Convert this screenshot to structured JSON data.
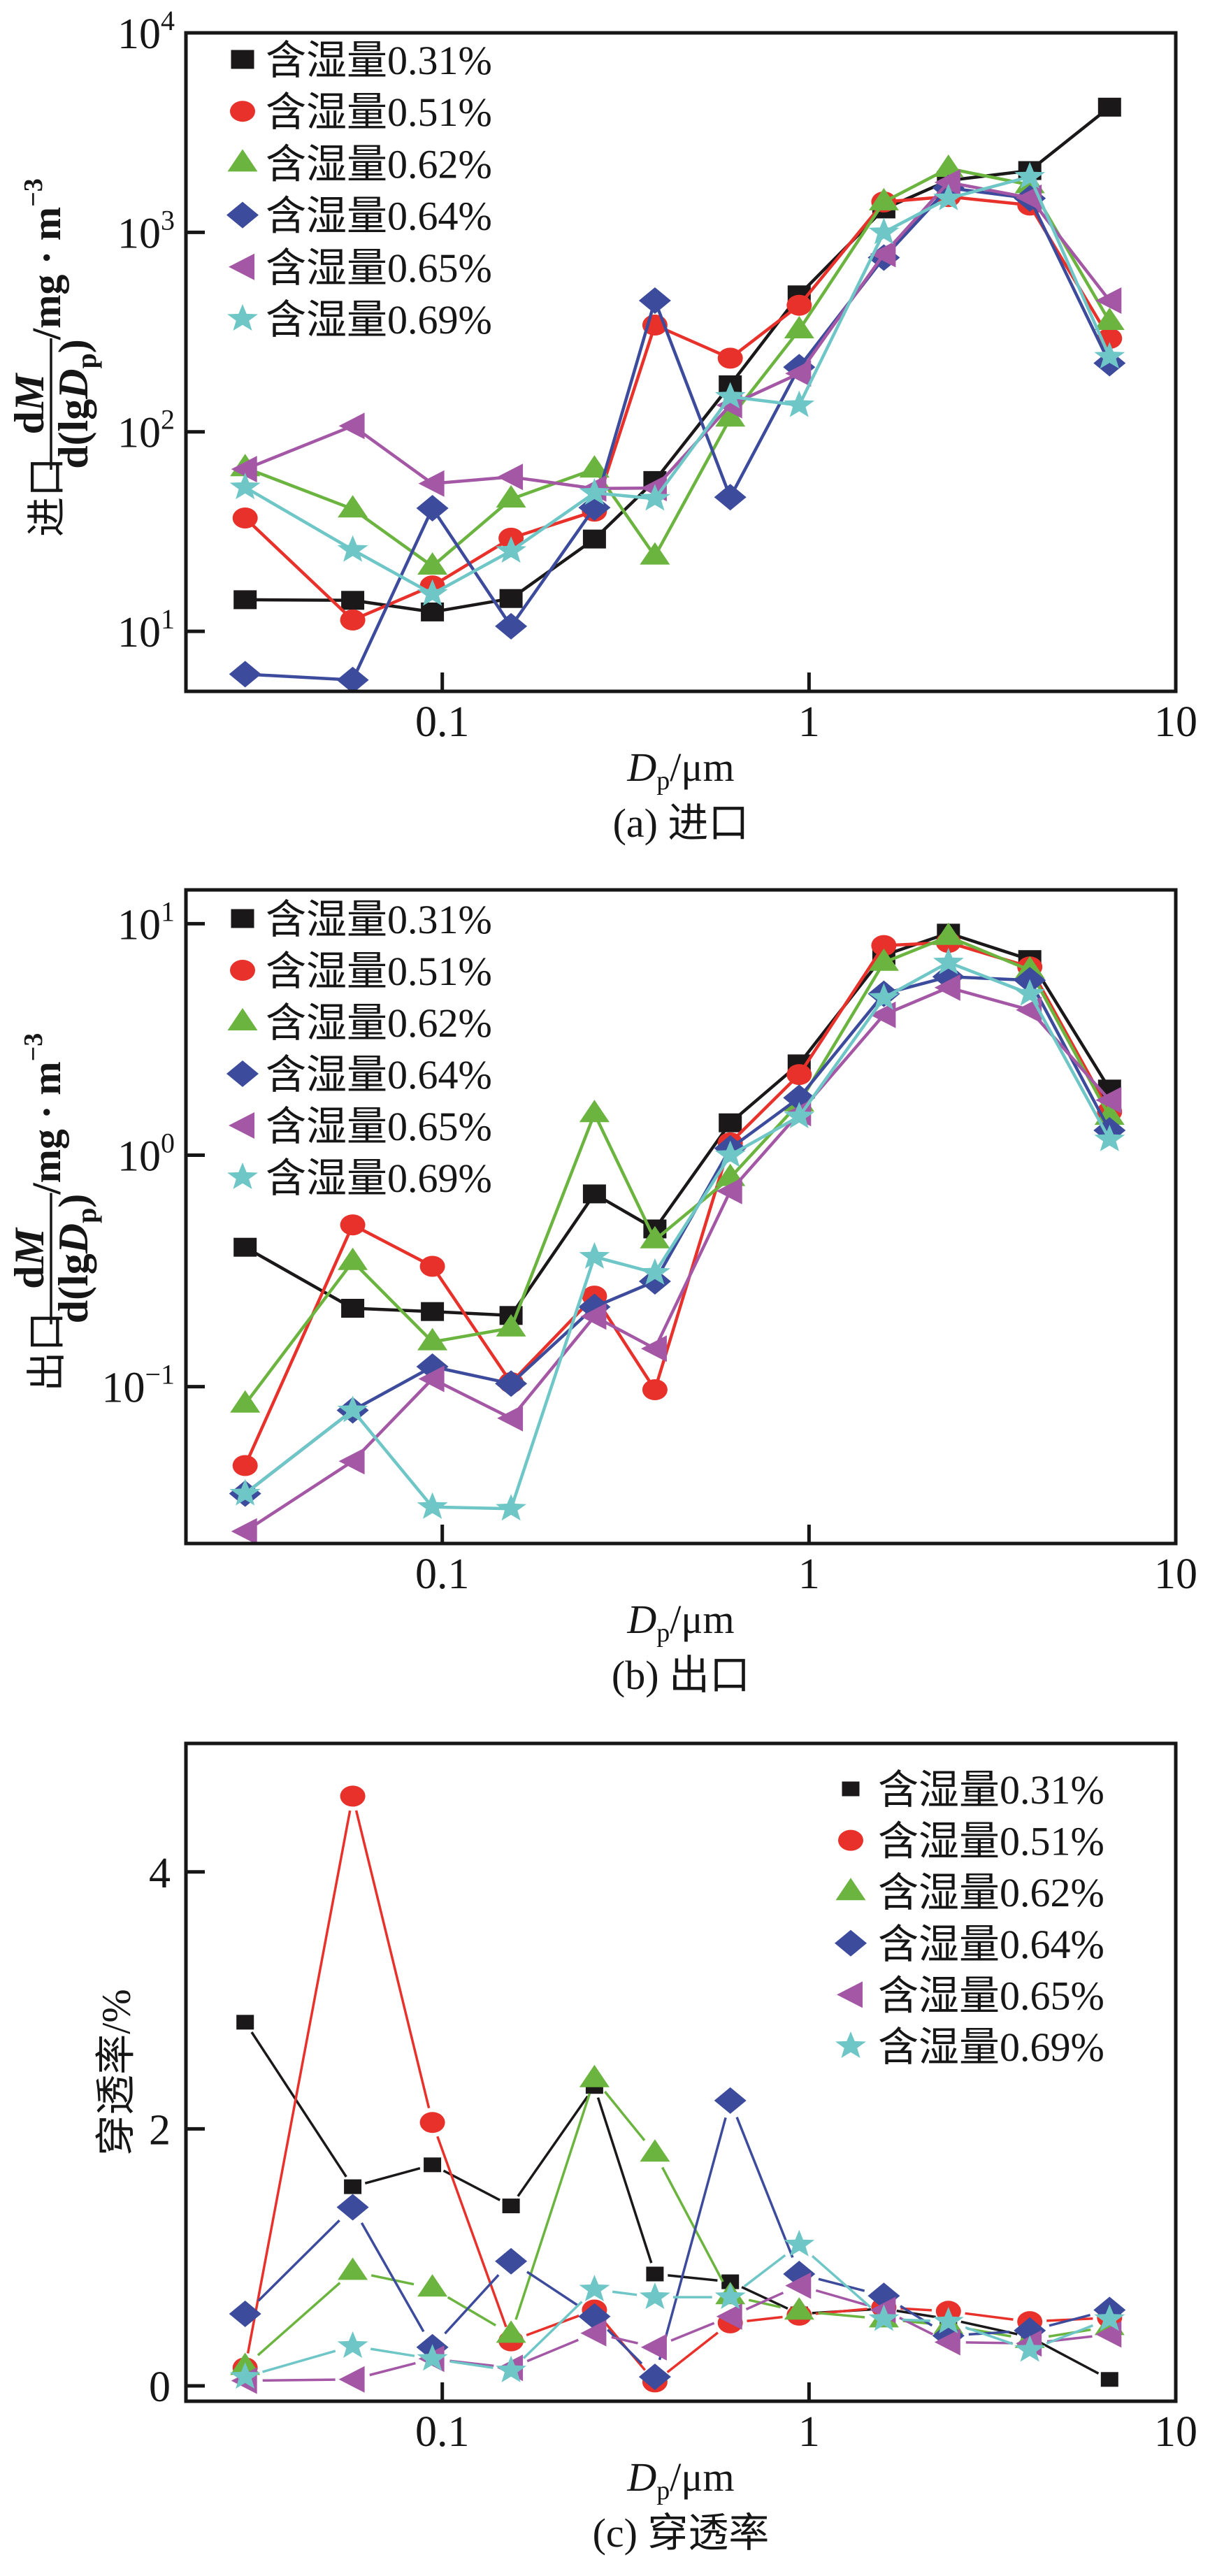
{
  "chart_data": [
    {
      "panel": "a",
      "type": "line",
      "title": "",
      "caption": "(a) 进口",
      "xscale": "log",
      "yscale": "log",
      "xlim": [
        0.02,
        10
      ],
      "ylim": [
        5,
        10000
      ],
      "grid": false,
      "legend": {
        "position": "top-left"
      },
      "xlabel": {
        "var": "D",
        "sub": "p",
        "unit": "/μm"
      },
      "ylabel": {
        "prefix": "进口",
        "num_d": "d",
        "num_var": "M",
        "den_open": "d(lg",
        "den_var": "D",
        "den_sub": "p",
        "den_close": ")",
        "unit": "/mg · m",
        "unit_sup": "−3"
      },
      "xticks": [
        0.1,
        1,
        10
      ],
      "xtick_labels": [
        "0.1",
        "1",
        "10"
      ],
      "yticks": [
        10,
        100,
        1000,
        10000
      ],
      "ytick_labels": [
        {
          "base": "10",
          "exp": "1"
        },
        {
          "base": "10",
          "exp": "2"
        },
        {
          "base": "10",
          "exp": "3"
        },
        {
          "base": "10",
          "exp": "4"
        }
      ],
      "x": [
        0.029,
        0.057,
        0.094,
        0.154,
        0.26,
        0.38,
        0.61,
        0.94,
        1.6,
        2.4,
        4.0,
        6.6
      ],
      "series": [
        {
          "name": "含湿量0.31%",
          "color": "#1a1818",
          "marker": "square",
          "values": [
            14.4,
            14.3,
            12.5,
            14.6,
            29,
            57,
            172,
            486,
            1310,
            1820,
            2040,
            4240
          ]
        },
        {
          "name": "含湿量0.51%",
          "color": "#e8312a",
          "marker": "circle",
          "values": [
            37,
            11.4,
            16.9,
            29.3,
            40,
            343,
            234,
            431,
            1420,
            1510,
            1370,
            294
          ]
        },
        {
          "name": "含湿量0.62%",
          "color": "#6bb43f",
          "marker": "triangle",
          "values": [
            66,
            41,
            21.2,
            46,
            65,
            23.8,
            117,
            324,
            1420,
            2090,
            1730,
            357
          ]
        },
        {
          "name": "含湿量0.64%",
          "color": "#3d4b9c",
          "marker": "diamond",
          "values": [
            6.1,
            5.7,
            41.4,
            10.6,
            41.7,
            455,
            47,
            211,
            747,
            1670,
            1480,
            221
          ]
        },
        {
          "name": "含湿量0.65%",
          "color": "#a357a5",
          "marker": "triangle-left",
          "values": [
            65,
            107,
            55,
            59.4,
            52,
            52.3,
            136,
            196,
            778,
            1780,
            1490,
            455
          ]
        },
        {
          "name": "含湿量0.69%",
          "color": "#6fc6c7",
          "marker": "star",
          "values": [
            52.7,
            25.6,
            15.4,
            25.3,
            49.4,
            46.2,
            150,
            136,
            1000,
            1480,
            1900,
            238
          ]
        }
      ]
    },
    {
      "panel": "b",
      "type": "line",
      "title": "",
      "caption": "(b) 出口",
      "xscale": "log",
      "yscale": "log",
      "xlim": [
        0.02,
        10
      ],
      "ylim": [
        0.021,
        14
      ],
      "grid": false,
      "legend": {
        "position": "top-left"
      },
      "xlabel": {
        "var": "D",
        "sub": "p",
        "unit": "/μm"
      },
      "ylabel": {
        "prefix": "出口",
        "num_d": "d",
        "num_var": "M",
        "den_open": "d(lg",
        "den_var": "D",
        "den_sub": "p",
        "den_close": ")",
        "unit": "/mg · m",
        "unit_sup": "−3"
      },
      "xticks": [
        0.1,
        1,
        10
      ],
      "xtick_labels": [
        "0.1",
        "1",
        "10"
      ],
      "yticks": [
        0.1,
        1,
        10
      ],
      "ytick_labels": [
        {
          "base": "10",
          "exp": "−1"
        },
        {
          "base": "10",
          "exp": "0"
        },
        {
          "base": "10",
          "exp": "1"
        }
      ],
      "x": [
        0.029,
        0.057,
        0.094,
        0.154,
        0.26,
        0.38,
        0.61,
        0.94,
        1.6,
        2.4,
        4.0,
        6.6
      ],
      "series": [
        {
          "name": "含湿量0.31%",
          "color": "#1a1818",
          "marker": "square",
          "values": [
            0.4,
            0.218,
            0.211,
            0.203,
            0.68,
            0.48,
            1.38,
            2.48,
            7.3,
            9.1,
            7.0,
            1.93
          ]
        },
        {
          "name": "含湿量0.51%",
          "color": "#e8312a",
          "marker": "circle",
          "values": [
            0.0456,
            0.5,
            0.331,
            0.104,
            0.246,
            0.097,
            1.13,
            2.23,
            8.05,
            8.3,
            6.5,
            1.54
          ]
        },
        {
          "name": "含湿量0.62%",
          "color": "#6bb43f",
          "marker": "triangle",
          "values": [
            0.084,
            0.347,
            0.156,
            0.179,
            1.51,
            0.43,
            0.8,
            1.68,
            6.8,
            8.8,
            6.3,
            1.47
          ]
        },
        {
          "name": "含湿量0.64%",
          "color": "#3d4b9c",
          "marker": "diamond",
          "values": [
            0.0345,
            0.079,
            0.122,
            0.103,
            0.221,
            0.285,
            1.07,
            1.77,
            4.98,
            5.9,
            5.7,
            1.28
          ]
        },
        {
          "name": "含湿量0.65%",
          "color": "#a357a5",
          "marker": "triangle-left",
          "values": [
            0.0237,
            0.0476,
            0.108,
            0.073,
            0.201,
            0.146,
            0.7,
            1.52,
            4.04,
            5.3,
            4.24,
            1.73
          ]
        },
        {
          "name": "含湿量0.69%",
          "color": "#6fc6c7",
          "marker": "star",
          "values": [
            0.0345,
            0.079,
            0.0302,
            0.0297,
            0.364,
            0.31,
            1.0,
            1.47,
            4.78,
            6.8,
            4.98,
            1.17
          ]
        }
      ]
    },
    {
      "panel": "c",
      "type": "line",
      "title": "",
      "caption": "(c) 穿透率",
      "xscale": "log",
      "yscale": "linear",
      "xlim": [
        0.02,
        10
      ],
      "ylim": [
        -0.12,
        5
      ],
      "grid": false,
      "legend": {
        "position": "top-right"
      },
      "xlabel": {
        "var": "D",
        "sub": "p",
        "unit": "/μm"
      },
      "ylabel": {
        "text": "穿透率/%"
      },
      "xticks": [
        0.1,
        1,
        10
      ],
      "xtick_labels": [
        "0.1",
        "1",
        "10"
      ],
      "yticks": [
        0,
        2,
        4
      ],
      "ytick_labels": [
        "0",
        "2",
        "4"
      ],
      "x": [
        0.029,
        0.057,
        0.094,
        0.154,
        0.26,
        0.38,
        0.61,
        0.94,
        1.6,
        2.4,
        4.0,
        6.6
      ],
      "series": [
        {
          "name": "含湿量0.31%",
          "color": "#1a1818",
          "marker": "square",
          "values": [
            2.83,
            1.55,
            1.72,
            1.4,
            2.33,
            0.87,
            0.81,
            0.56,
            0.6,
            0.52,
            0.38,
            0.05
          ]
        },
        {
          "name": "含湿量0.51%",
          "color": "#e8312a",
          "marker": "circle",
          "values": [
            0.14,
            4.59,
            2.05,
            0.35,
            0.59,
            0.03,
            0.49,
            0.55,
            0.61,
            0.58,
            0.5,
            0.53
          ]
        },
        {
          "name": "含湿量0.62%",
          "color": "#6bb43f",
          "marker": "triangle",
          "values": [
            0.15,
            0.89,
            0.76,
            0.4,
            2.39,
            1.81,
            0.7,
            0.58,
            0.52,
            0.47,
            0.36,
            0.46
          ]
        },
        {
          "name": "含湿量0.64%",
          "color": "#3d4b9c",
          "marker": "diamond",
          "values": [
            0.56,
            1.39,
            0.3,
            0.97,
            0.54,
            0.07,
            2.22,
            0.87,
            0.7,
            0.39,
            0.43,
            0.59
          ]
        },
        {
          "name": "含湿量0.65%",
          "color": "#a357a5",
          "marker": "triangle-left",
          "values": [
            0.04,
            0.05,
            0.21,
            0.14,
            0.41,
            0.3,
            0.54,
            0.78,
            0.59,
            0.34,
            0.33,
            0.4
          ]
        },
        {
          "name": "含湿量0.69%",
          "color": "#6fc6c7",
          "marker": "star",
          "values": [
            0.07,
            0.31,
            0.21,
            0.12,
            0.75,
            0.69,
            0.69,
            1.1,
            0.52,
            0.5,
            0.28,
            0.52
          ]
        }
      ]
    }
  ]
}
